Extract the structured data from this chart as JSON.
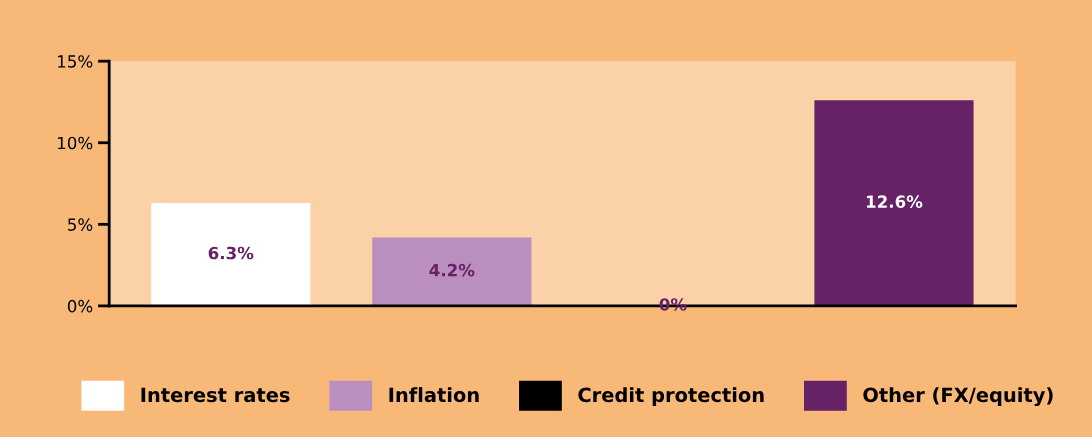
{
  "chart_data": {
    "type": "bar",
    "categories": [
      null,
      null,
      null,
      null
    ],
    "series": [
      {
        "name": "Interest rates",
        "color": "#ffffff",
        "values": [
          6.3,
          null,
          null,
          null
        ],
        "value_labels": [
          "6.3%",
          null,
          null,
          null
        ]
      },
      {
        "name": "Inflation",
        "color": "#bb8ec0",
        "values": [
          null,
          4.2,
          null,
          null
        ],
        "value_labels": [
          null,
          "4.2%",
          null,
          null
        ]
      },
      {
        "name": "Credit protection",
        "color": "#000000",
        "values": [
          null,
          null,
          0,
          null
        ],
        "value_labels": [
          null,
          null,
          "0%",
          null
        ]
      },
      {
        "name": "Other (FX/equity)",
        "color": "#662266",
        "values": [
          null,
          null,
          null,
          12.6
        ],
        "value_labels": [
          null,
          null,
          null,
          "12.6%"
        ]
      }
    ],
    "ylim": [
      0,
      15
    ],
    "yticks": [
      {
        "value": 0,
        "label": "0%"
      },
      {
        "value": 5,
        "label": "5%"
      },
      {
        "value": 10,
        "label": "10%"
      },
      {
        "value": 15,
        "label": "15%"
      }
    ],
    "grid": false,
    "legend": "bottom"
  }
}
